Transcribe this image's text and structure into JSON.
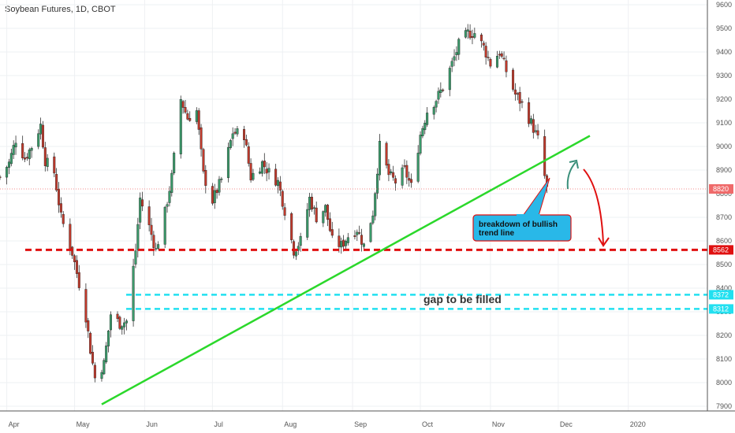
{
  "header": {
    "title": "Soybean Futures, 1D, CBOT"
  },
  "chart_data": {
    "type": "candlestick",
    "title": "Soybean Futures, 1D, CBOT",
    "ylim": [
      7880,
      9620
    ],
    "y_ticks": [
      "9600",
      "9500",
      "9400",
      "9300",
      "9200",
      "9100",
      "9000",
      "8900",
      "8800",
      "8700",
      "8600",
      "8500",
      "8400",
      "8300",
      "8200",
      "8100",
      "8000",
      "7900"
    ],
    "x_ticks": [
      "Apr",
      "May",
      "Jun",
      "Jul",
      "Aug",
      "Sep",
      "Oct",
      "Nov",
      "Dec",
      "2020"
    ],
    "x_tick_dates": [
      "2019-04-01",
      "2019-05-01",
      "2019-06-01",
      "2019-07-01",
      "2019-08-01",
      "2019-09-01",
      "2019-10-01",
      "2019-11-01",
      "2019-12-01",
      "2020-01-01"
    ],
    "x_range": [
      "2019-03-29",
      "2020-02-05"
    ],
    "colors": {
      "up": "#3a9a6a",
      "down": "#c0392b",
      "wick": "#333333",
      "trendline": "#2bd82b",
      "support": "#e01010",
      "gap": "#22e0f0",
      "annotation_fill": "#29b8e8"
    },
    "current_price": {
      "label": "8820",
      "value": 8820,
      "color": "#ef6a6a"
    },
    "horizontal_lines": [
      {
        "label": "8562",
        "value": 8562,
        "color": "#e01010",
        "style": "dashed"
      },
      {
        "label": "8372",
        "value": 8372,
        "color": "#22e0f0",
        "style": "dashed"
      },
      {
        "label": "8312",
        "value": 8312,
        "color": "#22e0f0",
        "style": "dashed"
      }
    ],
    "trendline": {
      "points": [
        [
          "2019-05-13",
          7908
        ],
        [
          "2019-12-15",
          9045
        ]
      ]
    },
    "annotations": [
      {
        "text": "gap to be filled"
      },
      {
        "lines": [
          "breakdown of bullish",
          "trend line"
        ]
      }
    ],
    "series": [
      {
        "anchors": [
          [
            "2019-03-29",
            8870
          ],
          [
            "2019-04-02",
            8930
          ],
          [
            "2019-04-05",
            9030
          ],
          [
            "2019-04-09",
            8950
          ],
          [
            "2019-04-12",
            9000
          ],
          [
            "2019-04-16",
            9090
          ],
          [
            "2019-04-18",
            8940
          ],
          [
            "2019-04-22",
            8890
          ],
          [
            "2019-04-25",
            8700
          ],
          [
            "2019-04-30",
            8550
          ],
          [
            "2019-05-03",
            8420
          ],
          [
            "2019-05-06",
            8280
          ],
          [
            "2019-05-08",
            8140
          ],
          [
            "2019-05-10",
            8020
          ],
          [
            "2019-05-14",
            8080
          ],
          [
            "2019-05-17",
            8290
          ],
          [
            "2019-05-21",
            8250
          ],
          [
            "2019-05-24",
            8260
          ],
          [
            "2019-05-28",
            8560
          ],
          [
            "2019-05-30",
            8780
          ],
          [
            "2019-06-03",
            8660
          ],
          [
            "2019-06-06",
            8560
          ],
          [
            "2019-06-10",
            8720
          ],
          [
            "2019-06-13",
            8870
          ],
          [
            "2019-06-17",
            9200
          ],
          [
            "2019-06-20",
            9120
          ],
          [
            "2019-06-24",
            9150
          ],
          [
            "2019-06-27",
            8880
          ],
          [
            "2019-07-01",
            8770
          ],
          [
            "2019-07-05",
            8860
          ],
          [
            "2019-07-10",
            9060
          ],
          [
            "2019-07-15",
            9050
          ],
          [
            "2019-07-18",
            8870
          ],
          [
            "2019-07-23",
            8930
          ],
          [
            "2019-07-26",
            8890
          ],
          [
            "2019-07-30",
            8850
          ],
          [
            "2019-08-02",
            8730
          ],
          [
            "2019-08-06",
            8560
          ],
          [
            "2019-08-09",
            8600
          ],
          [
            "2019-08-13",
            8780
          ],
          [
            "2019-08-16",
            8700
          ],
          [
            "2019-08-20",
            8740
          ],
          [
            "2019-08-23",
            8600
          ],
          [
            "2019-08-27",
            8580
          ],
          [
            "2019-08-30",
            8620
          ],
          [
            "2019-09-03",
            8650
          ],
          [
            "2019-09-06",
            8580
          ],
          [
            "2019-09-10",
            8720
          ],
          [
            "2019-09-13",
            9000
          ],
          [
            "2019-09-17",
            8880
          ],
          [
            "2019-09-20",
            8850
          ],
          [
            "2019-09-24",
            8900
          ],
          [
            "2019-09-27",
            8830
          ],
          [
            "2019-10-01",
            9050
          ],
          [
            "2019-10-04",
            9150
          ],
          [
            "2019-10-08",
            9200
          ],
          [
            "2019-10-11",
            9250
          ],
          [
            "2019-10-15",
            9350
          ],
          [
            "2019-10-18",
            9430
          ],
          [
            "2019-10-22",
            9480
          ],
          [
            "2019-10-25",
            9480
          ],
          [
            "2019-10-29",
            9420
          ],
          [
            "2019-11-01",
            9350
          ],
          [
            "2019-11-05",
            9400
          ],
          [
            "2019-11-08",
            9320
          ],
          [
            "2019-11-12",
            9220
          ],
          [
            "2019-11-15",
            9180
          ],
          [
            "2019-11-19",
            9100
          ],
          [
            "2019-11-22",
            9030
          ],
          [
            "2019-11-26",
            8820
          ]
        ]
      }
    ]
  }
}
